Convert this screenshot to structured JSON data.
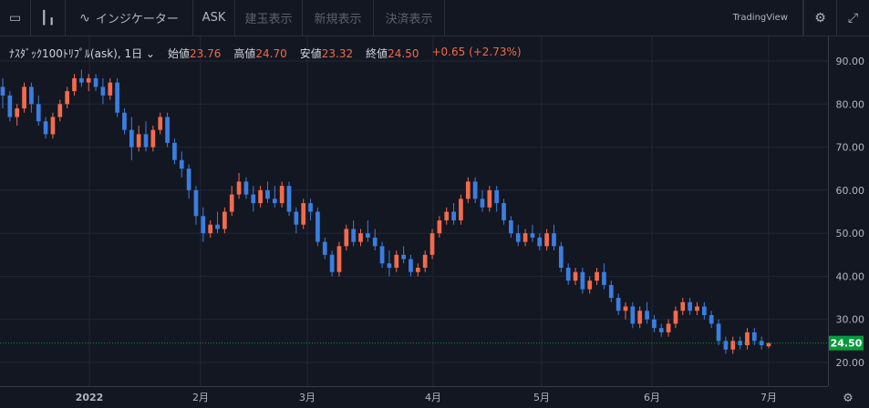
{
  "toolbar": {
    "indicator_label": "インジケーター",
    "ask_label": "ASK",
    "buttons": [
      "建玉表示",
      "新規表示",
      "決済表示"
    ],
    "brand": "TradingView"
  },
  "legend": {
    "symbol": "ﾅｽﾀﾞｯｸ100ﾄﾘﾌﾟﾙ(ask), 1日",
    "open_label": "始値",
    "open": "23.76",
    "high_label": "高値",
    "high": "24.70",
    "low_label": "安値",
    "low": "23.32",
    "close_label": "終値",
    "close": "24.50",
    "change": "+0.65 (+2.73%)"
  },
  "colors": {
    "up": "#f26b4d",
    "down": "#3a7ee0",
    "last_price_bg": "#089a3e"
  },
  "chart_data": {
    "type": "candlestick",
    "y_ticks": [
      "90.00",
      "80.00",
      "70.00",
      "60.00",
      "50.00",
      "40.00",
      "30.00",
      "20.00"
    ],
    "x_labels": [
      "2022",
      "2月",
      "3月",
      "4月",
      "5月",
      "6月",
      "7月"
    ],
    "last_price": "24.50",
    "ylim": [
      20,
      90
    ],
    "candles": [
      [
        84,
        86,
        79,
        82
      ],
      [
        82,
        83,
        76,
        77
      ],
      [
        77,
        80,
        75,
        79
      ],
      [
        79,
        85,
        78,
        84
      ],
      [
        84,
        85,
        78,
        80
      ],
      [
        80,
        82,
        75,
        76
      ],
      [
        76,
        77,
        72,
        73
      ],
      [
        73,
        78,
        72,
        77
      ],
      [
        77,
        81,
        76,
        80
      ],
      [
        80,
        84,
        79,
        83
      ],
      [
        83,
        87,
        82,
        86
      ],
      [
        86,
        88,
        84,
        85
      ],
      [
        85,
        87,
        83,
        86
      ],
      [
        86,
        87,
        83,
        84
      ],
      [
        84,
        86,
        80,
        82
      ],
      [
        82,
        86,
        81,
        85
      ],
      [
        85,
        86,
        77,
        78
      ],
      [
        78,
        79,
        73,
        74
      ],
      [
        74,
        77,
        67,
        70
      ],
      [
        70,
        75,
        69,
        73
      ],
      [
        73,
        76,
        69,
        70
      ],
      [
        70,
        75,
        69,
        74
      ],
      [
        74,
        78,
        73,
        77
      ],
      [
        77,
        78,
        70,
        71
      ],
      [
        71,
        72,
        66,
        67
      ],
      [
        67,
        69,
        63,
        65
      ],
      [
        65,
        66,
        58,
        60
      ],
      [
        60,
        61,
        52,
        54
      ],
      [
        54,
        56,
        48,
        50
      ],
      [
        50,
        53,
        49,
        52
      ],
      [
        52,
        55,
        50,
        51
      ],
      [
        51,
        56,
        50,
        55
      ],
      [
        55,
        61,
        54,
        59
      ],
      [
        59,
        64,
        58,
        62
      ],
      [
        62,
        63,
        58,
        59
      ],
      [
        59,
        61,
        55,
        57
      ],
      [
        57,
        61,
        56,
        60
      ],
      [
        60,
        62,
        57,
        58
      ],
      [
        58,
        61,
        56,
        57
      ],
      [
        57,
        62,
        56,
        61
      ],
      [
        61,
        62,
        54,
        55
      ],
      [
        55,
        56,
        50,
        52
      ],
      [
        52,
        58,
        51,
        57
      ],
      [
        57,
        58,
        53,
        55
      ],
      [
        55,
        56,
        47,
        48
      ],
      [
        48,
        49,
        44,
        45
      ],
      [
        45,
        46,
        40,
        41
      ],
      [
        41,
        48,
        40,
        47
      ],
      [
        47,
        52,
        46,
        51
      ],
      [
        51,
        53,
        47,
        48
      ],
      [
        48,
        51,
        47,
        50
      ],
      [
        50,
        53,
        48,
        49
      ],
      [
        49,
        51,
        46,
        47
      ],
      [
        47,
        48,
        42,
        43
      ],
      [
        43,
        46,
        40,
        42
      ],
      [
        42,
        46,
        41,
        45
      ],
      [
        45,
        47,
        43,
        44
      ],
      [
        44,
        45,
        40,
        41
      ],
      [
        41,
        43,
        40,
        42
      ],
      [
        42,
        46,
        41,
        45
      ],
      [
        45,
        51,
        44,
        50
      ],
      [
        50,
        54,
        49,
        53
      ],
      [
        53,
        56,
        52,
        55
      ],
      [
        55,
        57,
        52,
        53
      ],
      [
        53,
        59,
        52,
        58
      ],
      [
        58,
        63,
        57,
        62
      ],
      [
        62,
        63,
        57,
        58
      ],
      [
        58,
        60,
        55,
        56
      ],
      [
        56,
        61,
        55,
        60
      ],
      [
        60,
        61,
        55,
        57
      ],
      [
        57,
        58,
        52,
        53
      ],
      [
        53,
        54,
        49,
        50
      ],
      [
        50,
        52,
        47,
        48
      ],
      [
        48,
        51,
        47,
        50
      ],
      [
        50,
        52,
        48,
        49
      ],
      [
        49,
        50,
        46,
        47
      ],
      [
        47,
        51,
        46,
        50
      ],
      [
        50,
        52,
        46,
        47
      ],
      [
        47,
        48,
        41,
        42
      ],
      [
        42,
        43,
        38,
        39
      ],
      [
        39,
        42,
        38,
        41
      ],
      [
        41,
        42,
        36,
        37
      ],
      [
        37,
        40,
        36,
        39
      ],
      [
        39,
        42,
        38,
        41
      ],
      [
        41,
        43,
        37,
        38
      ],
      [
        38,
        39,
        34,
        35
      ],
      [
        35,
        36,
        31,
        32
      ],
      [
        32,
        34,
        30,
        33
      ],
      [
        33,
        34,
        28,
        29
      ],
      [
        29,
        33,
        28,
        32
      ],
      [
        32,
        34,
        29,
        30
      ],
      [
        30,
        31,
        27,
        28
      ],
      [
        28,
        29,
        26,
        27
      ],
      [
        27,
        30,
        26,
        29
      ],
      [
        29,
        33,
        28,
        32
      ],
      [
        32,
        35,
        31,
        34
      ],
      [
        34,
        35,
        31,
        32
      ],
      [
        32,
        34,
        31,
        33
      ],
      [
        33,
        34,
        30,
        31
      ],
      [
        31,
        32,
        28,
        29
      ],
      [
        29,
        30,
        24,
        25
      ],
      [
        25,
        26,
        22,
        23
      ],
      [
        23,
        26,
        22,
        25
      ],
      [
        25,
        26,
        23,
        24
      ],
      [
        24,
        28,
        23,
        27
      ],
      [
        27,
        28,
        24,
        25
      ],
      [
        25,
        26,
        23,
        24
      ],
      [
        23.76,
        24.7,
        23.32,
        24.5
      ]
    ]
  }
}
